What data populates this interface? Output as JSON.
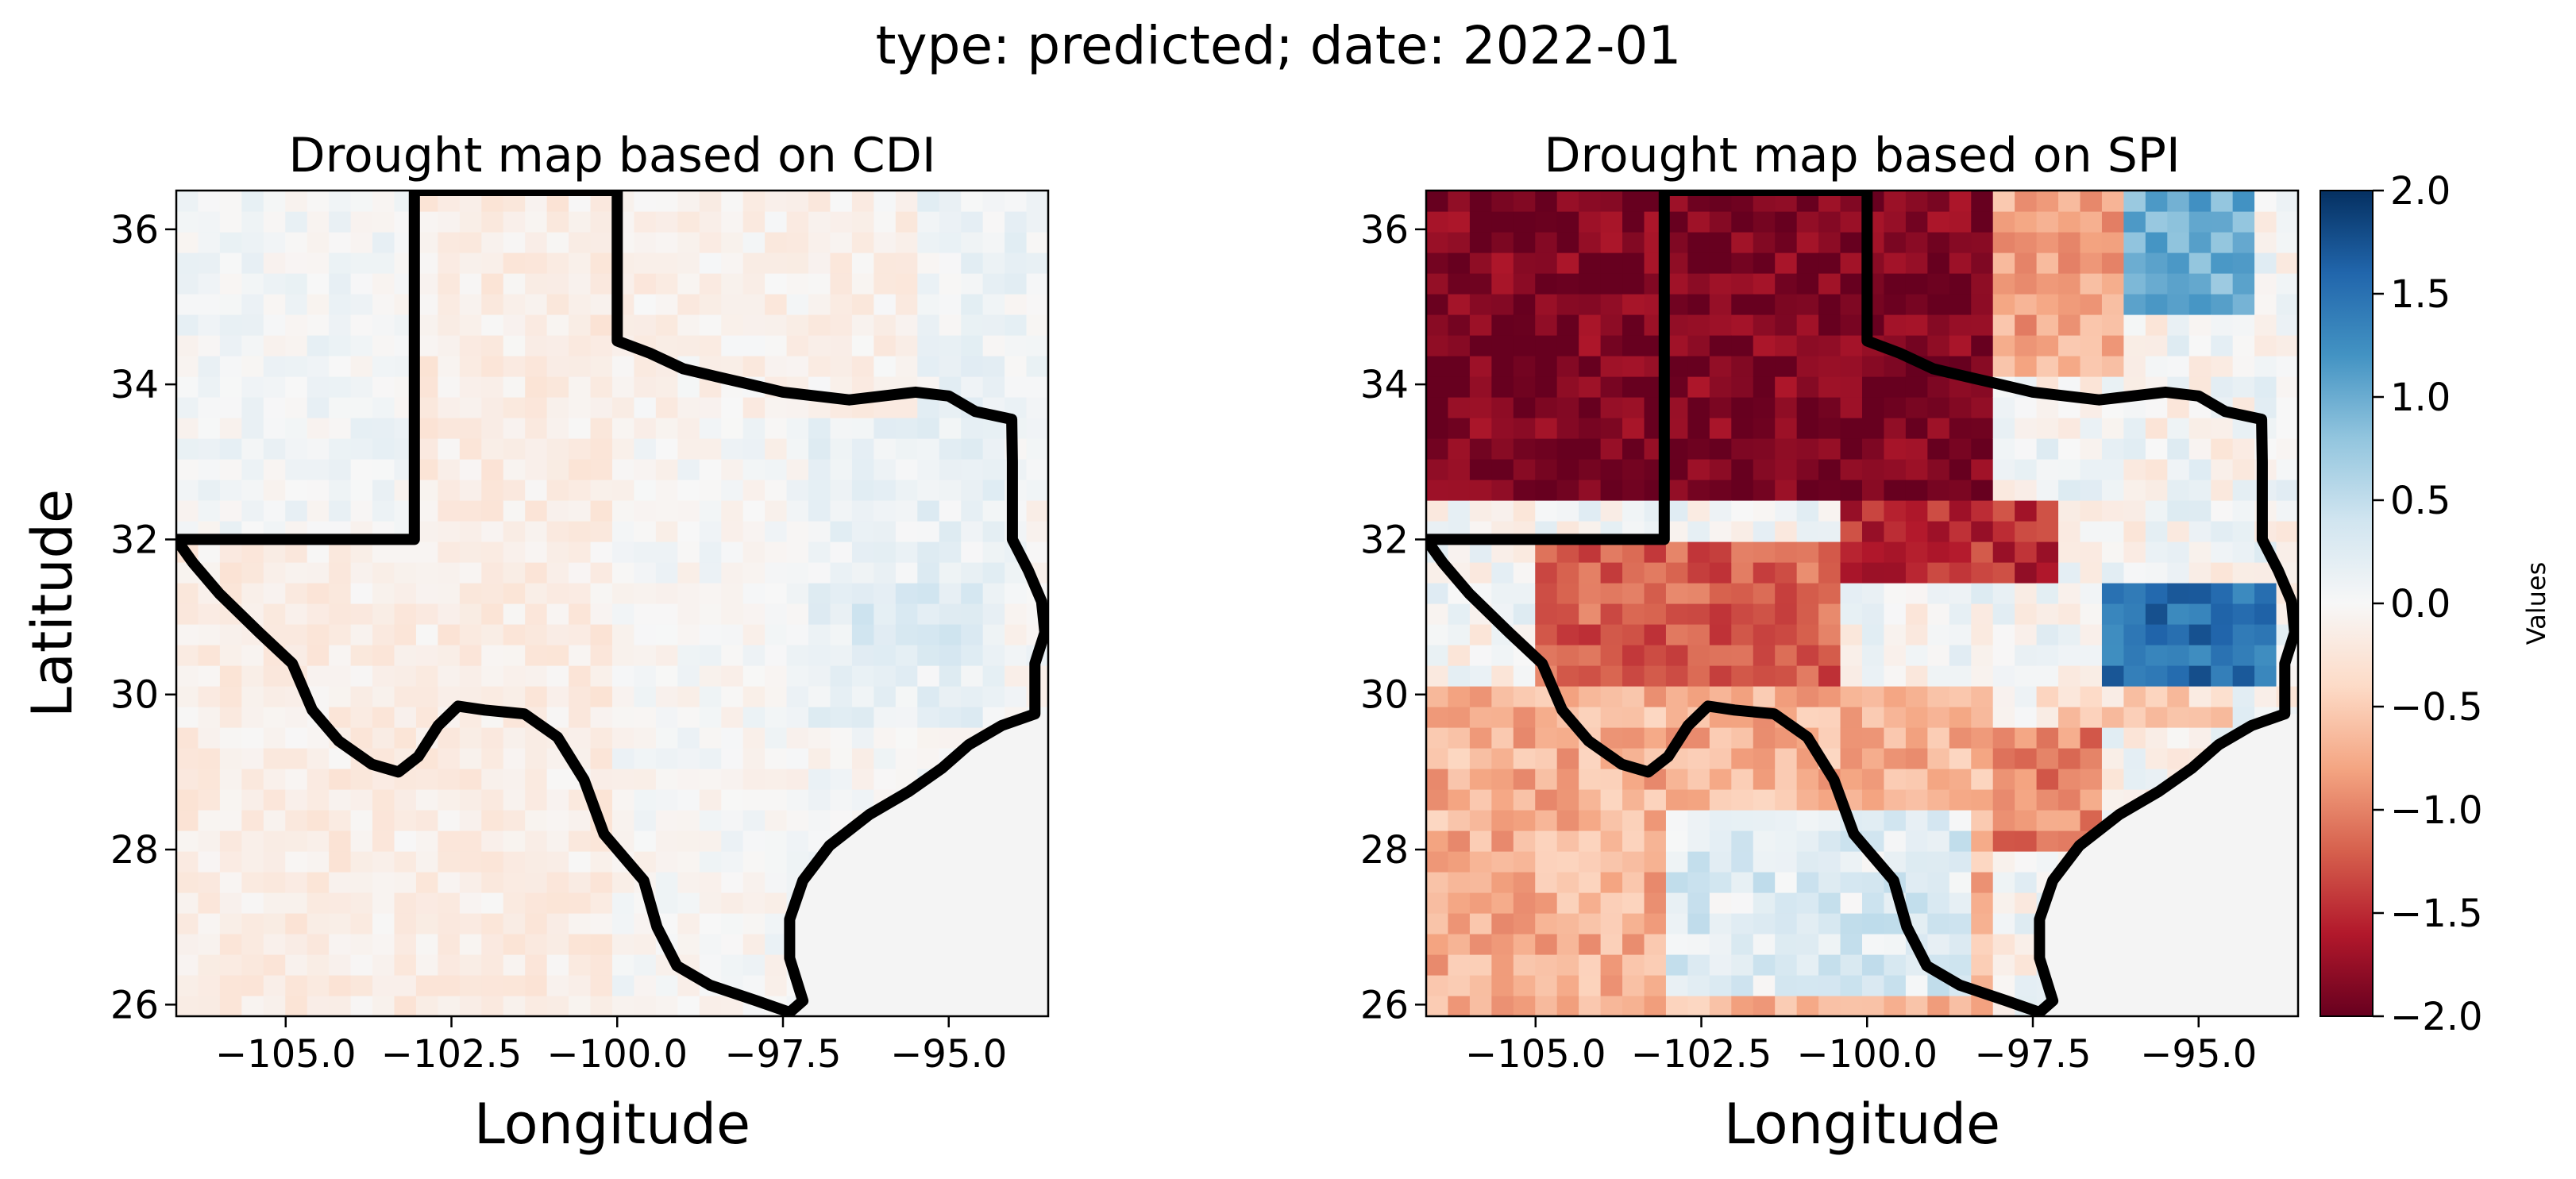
{
  "figure": {
    "suptitle": "type: predicted; date: 2022-01"
  },
  "colors": {
    "neg_extreme": "#67001f",
    "neg_strong": "#b2182b",
    "neg_mid": "#d6604d",
    "neg_light": "#f4a582",
    "neg_faint": "#fddbc7",
    "neutral": "#f7f7f7",
    "pos_faint": "#d1e5f0",
    "pos_light": "#92c5de",
    "pos_mid": "#4393c3",
    "pos_strong": "#2166ac",
    "pos_extreme": "#053061",
    "border": "#000000",
    "no_data": "#f4f4f4"
  },
  "chart_data": [
    {
      "type": "heatmap",
      "title": "Drought map based on CDI",
      "xlabel": "Longitude",
      "ylabel": "Latitude",
      "xlim": [
        -106.65,
        -93.5
      ],
      "ylim": [
        25.85,
        36.5
      ],
      "xticks": [
        -105.0,
        -102.5,
        -100.0,
        -97.5,
        -95.0
      ],
      "xtick_labels": [
        "−105.0",
        "−102.5",
        "−100.0",
        "−97.5",
        "−95.0"
      ],
      "yticks": [
        26,
        28,
        30,
        32,
        34,
        36
      ],
      "ytick_labels": [
        "26",
        "28",
        "30",
        "32",
        "34",
        "36"
      ],
      "value_range": [
        -2.0,
        2.0
      ],
      "regions": [
        {
          "lon": [
            -106.6,
            -103.0
          ],
          "lat": [
            32.0,
            36.5
          ],
          "value": 0.05
        },
        {
          "lon": [
            -103.0,
            -100.0
          ],
          "lat": [
            32.0,
            36.5
          ],
          "value": -0.15
        },
        {
          "lon": [
            -100.0,
            -95.5
          ],
          "lat": [
            33.5,
            36.5
          ],
          "value": -0.1
        },
        {
          "lon": [
            -95.5,
            -93.5
          ],
          "lat": [
            33.5,
            36.5
          ],
          "value": 0.1
        },
        {
          "lon": [
            -106.6,
            -100.0
          ],
          "lat": [
            25.9,
            32.0
          ],
          "value": -0.15
        },
        {
          "lon": [
            -100.0,
            -97.0
          ],
          "lat": [
            26.5,
            32.0
          ],
          "value": 0.0
        },
        {
          "lon": [
            -97.0,
            -94.0
          ],
          "lat": [
            29.5,
            33.5
          ],
          "value": 0.15
        },
        {
          "lon": [
            -96.5,
            -94.5
          ],
          "lat": [
            30.5,
            31.5
          ],
          "value": 0.3
        }
      ]
    },
    {
      "type": "heatmap",
      "title": "Drought map based on SPI",
      "xlabel": "Longitude",
      "ylabel": "",
      "xlim": [
        -106.65,
        -93.5
      ],
      "ylim": [
        25.85,
        36.5
      ],
      "xticks": [
        -105.0,
        -102.5,
        -100.0,
        -97.5,
        -95.0
      ],
      "xtick_labels": [
        "−105.0",
        "−102.5",
        "−100.0",
        "−97.5",
        "−95.0"
      ],
      "yticks": [
        26,
        28,
        30,
        32,
        34,
        36
      ],
      "ytick_labels": [
        "26",
        "28",
        "30",
        "32",
        "34",
        "36"
      ],
      "value_range": [
        -2.0,
        2.0
      ],
      "regions": [
        {
          "lon": [
            -106.6,
            -98.0
          ],
          "lat": [
            32.5,
            36.5
          ],
          "value": -1.9
        },
        {
          "lon": [
            -98.0,
            -96.0
          ],
          "lat": [
            34.0,
            36.5
          ],
          "value": -0.8
        },
        {
          "lon": [
            -96.0,
            -94.0
          ],
          "lat": [
            35.0,
            36.5
          ],
          "value": 1.0
        },
        {
          "lon": [
            -100.5,
            -97.0
          ],
          "lat": [
            31.5,
            32.5
          ],
          "value": -1.5
        },
        {
          "lon": [
            -105.0,
            -100.5
          ],
          "lat": [
            30.0,
            32.0
          ],
          "value": -1.2
        },
        {
          "lon": [
            -96.5,
            -93.8
          ],
          "lat": [
            30.2,
            31.4
          ],
          "value": 1.5
        },
        {
          "lon": [
            -106.6,
            -98.0
          ],
          "lat": [
            25.9,
            30.0
          ],
          "value": -0.7
        },
        {
          "lon": [
            -103.0,
            -98.5
          ],
          "lat": [
            26.0,
            28.5
          ],
          "value": 0.25
        },
        {
          "lon": [
            -98.0,
            -96.5
          ],
          "lat": [
            28.0,
            29.5
          ],
          "value": -1.0
        },
        {
          "lon": [
            -97.5,
            -94.5
          ],
          "lat": [
            29.5,
            30.2
          ],
          "value": -0.4
        }
      ]
    }
  ],
  "colorbar": {
    "label": "Values",
    "range": [
      -2.0,
      2.0
    ],
    "ticks": [
      2.0,
      1.5,
      1.0,
      0.5,
      0.0,
      -0.5,
      -1.0,
      -1.5,
      -2.0
    ],
    "tick_labels": [
      "2.0",
      "1.5",
      "1.0",
      "0.5",
      "0.0",
      "−0.5",
      "−1.0",
      "−1.5",
      "−2.0"
    ]
  }
}
